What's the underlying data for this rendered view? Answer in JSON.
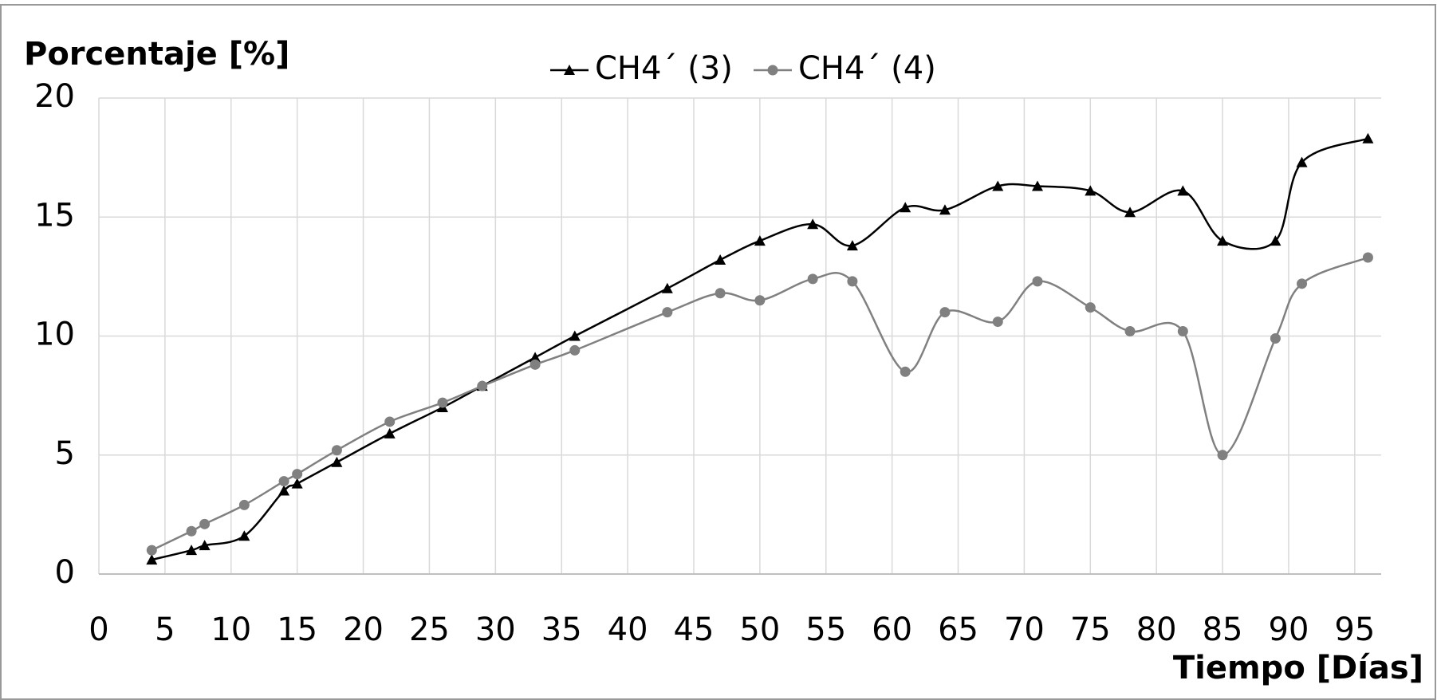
{
  "chart_data": {
    "type": "line",
    "y_label": "Porcentaje [%]",
    "x_label": "Tiempo [Días]",
    "x": [
      4,
      7,
      8,
      11,
      14,
      15,
      18,
      22,
      26,
      29,
      33,
      36,
      43,
      47,
      50,
      54,
      57,
      61,
      64,
      68,
      71,
      75,
      78,
      82,
      85,
      89,
      91,
      96
    ],
    "series": [
      {
        "name": "CH4´ (3)",
        "color": "#000000",
        "marker": "triangle",
        "values": [
          0.6,
          1.0,
          1.2,
          1.6,
          3.5,
          3.8,
          4.7,
          5.9,
          7.0,
          7.9,
          9.1,
          10.0,
          12.0,
          13.2,
          14.0,
          14.7,
          13.8,
          15.4,
          15.3,
          16.3,
          16.3,
          16.1,
          15.2,
          16.1,
          14.0,
          14.0,
          17.3,
          18.3
        ]
      },
      {
        "name": "CH4´ (4)",
        "color": "#808080",
        "marker": "circle",
        "values": [
          1.0,
          1.8,
          2.1,
          2.9,
          3.9,
          4.2,
          5.2,
          6.4,
          7.2,
          7.9,
          8.8,
          9.4,
          11.0,
          11.8,
          11.5,
          12.4,
          12.3,
          8.5,
          11.0,
          10.6,
          12.3,
          11.2,
          10.2,
          10.2,
          5.0,
          9.9,
          12.2,
          13.3
        ]
      }
    ],
    "xlim": [
      0,
      97
    ],
    "xticks": [
      0,
      5,
      10,
      15,
      20,
      25,
      30,
      35,
      40,
      45,
      50,
      55,
      60,
      65,
      70,
      75,
      80,
      85,
      90,
      95
    ],
    "ylim": [
      0,
      20
    ],
    "yticks": [
      0,
      5,
      10,
      15,
      20
    ],
    "grid": true,
    "smooth": true,
    "legend": "top"
  }
}
